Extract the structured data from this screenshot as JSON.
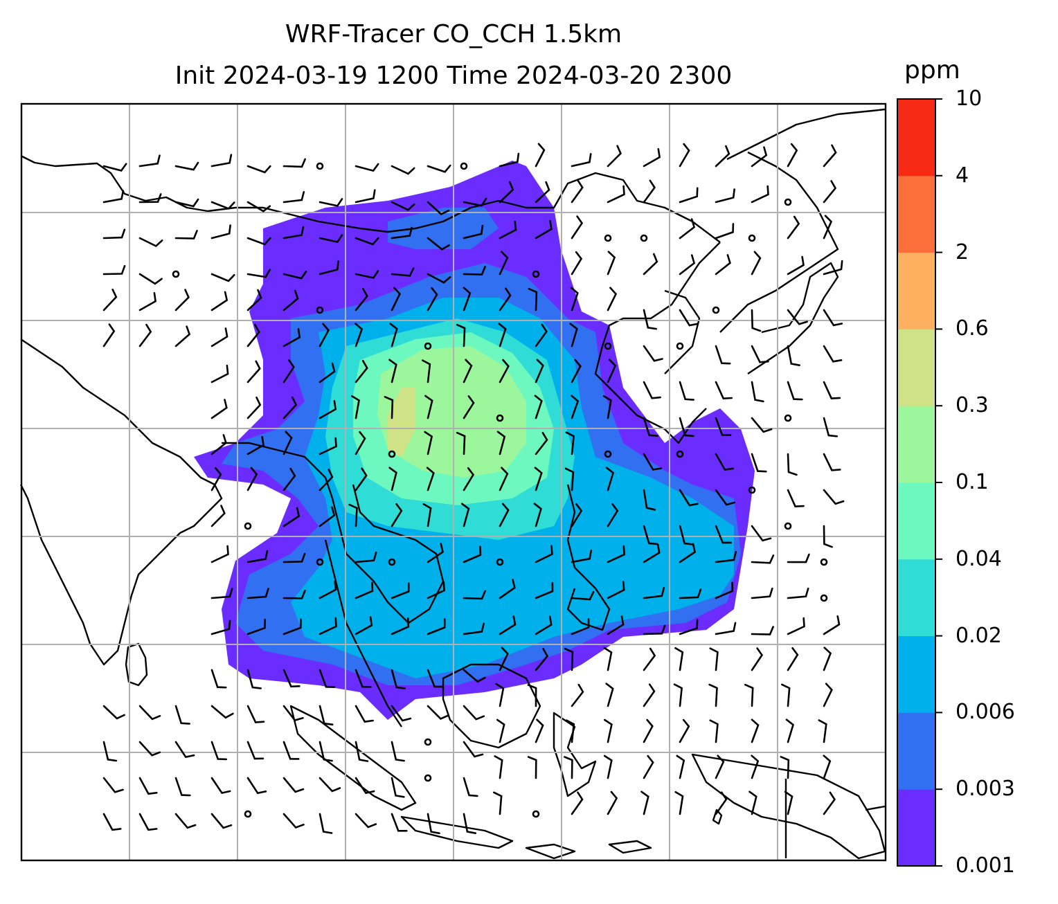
{
  "title": {
    "line1": "WRF-Tracer CO_CCH 1.5km",
    "line2": "Init 2024-03-19 1200 Time 2024-03-20 2300"
  },
  "colorbar": {
    "units": "ppm",
    "ticks": [
      "0.001",
      "0.003",
      "0.006",
      "0.02",
      "0.04",
      "0.1",
      "0.3",
      "0.6",
      "2",
      "4",
      "10"
    ],
    "colors": [
      "#6a2cff",
      "#3270f2",
      "#00b0ea",
      "#2fdcd6",
      "#6cf8be",
      "#9cf79c",
      "#d0e286",
      "#fdb160",
      "#fb6f3b",
      "#f72a16"
    ]
  },
  "map": {
    "gridlines": true,
    "border_color": "#000000",
    "grid_color": "#b0b0b0",
    "wind_barbs": true
  }
}
